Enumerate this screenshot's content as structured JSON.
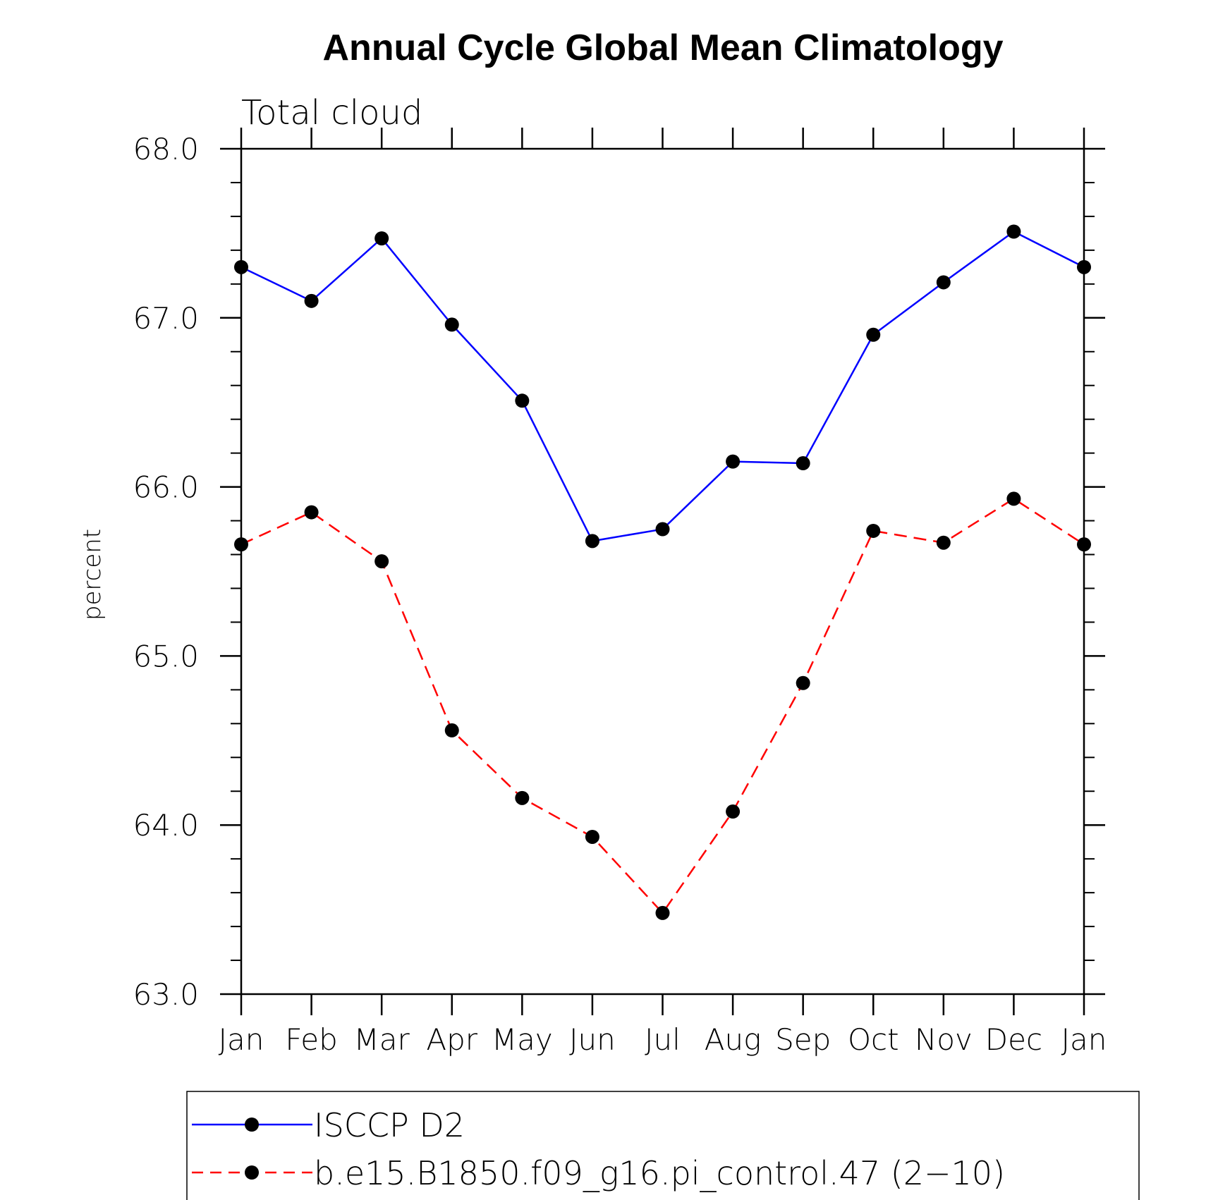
{
  "chart_data": {
    "type": "line",
    "title": "Annual Cycle Global Mean Climatology",
    "subtitle": "Total cloud",
    "xlabel": "",
    "ylabel": "percent",
    "categories": [
      "Jan",
      "Feb",
      "Mar",
      "Apr",
      "May",
      "Jun",
      "Jul",
      "Aug",
      "Sep",
      "Oct",
      "Nov",
      "Dec",
      "Jan"
    ],
    "ylim": [
      63.0,
      68.0
    ],
    "yticks": [
      "63.0",
      "64.0",
      "65.0",
      "66.0",
      "67.0",
      "68.0"
    ],
    "grid": false,
    "legend_position": "bottom",
    "series": [
      {
        "name": "ISCCP D2",
        "color": "#0000ff",
        "line_style": "solid",
        "marker": "filled-circle",
        "values": [
          67.3,
          67.1,
          67.47,
          66.96,
          66.51,
          65.68,
          65.75,
          66.15,
          66.14,
          66.9,
          67.21,
          67.51,
          67.3
        ]
      },
      {
        "name": "b.e15.B1850.f09_g16.pi_control.47 (2−10)",
        "color": "#ff0000",
        "line_style": "dashed",
        "marker": "filled-circle",
        "values": [
          65.66,
          65.85,
          65.56,
          64.56,
          64.16,
          63.93,
          63.48,
          64.08,
          64.84,
          65.74,
          65.67,
          65.93,
          65.66
        ]
      }
    ]
  }
}
